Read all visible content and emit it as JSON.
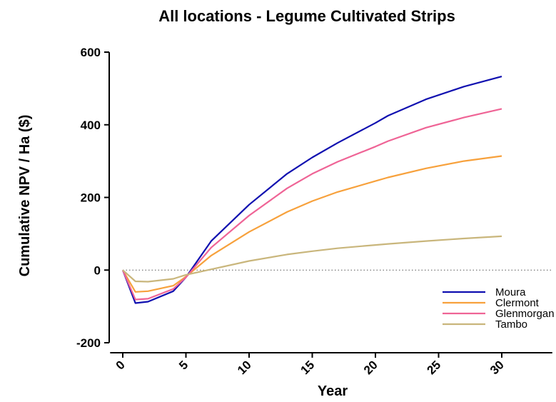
{
  "chart_data": {
    "type": "line",
    "title": "All locations - Legume Cultivated Strips",
    "xlabel": "Year",
    "ylabel": "Cumulative NPV / Ha ($)",
    "xlim": [
      -1,
      34
    ],
    "ylim": [
      -200,
      600
    ],
    "xticks": [
      0,
      5,
      10,
      15,
      20,
      25,
      30
    ],
    "yticks": [
      -200,
      0,
      200,
      400,
      600
    ],
    "reference_line": {
      "y": 0,
      "style": "dotted"
    },
    "legend_position": "bottom-right",
    "x": [
      0,
      1,
      2,
      4,
      5,
      7,
      10,
      13,
      15,
      17,
      20,
      21,
      24,
      27,
      30
    ],
    "series": [
      {
        "name": "Moura",
        "color": "#1010b0",
        "values": [
          0,
          -91,
          -87,
          -58,
          -20,
          80,
          180,
          265,
          310,
          350,
          405,
          425,
          470,
          505,
          533
        ]
      },
      {
        "name": "Clermont",
        "color": "#f7a13c",
        "values": [
          0,
          -60,
          -58,
          -43,
          -18,
          40,
          105,
          160,
          190,
          215,
          245,
          255,
          280,
          300,
          314
        ]
      },
      {
        "name": "Glenmorgan",
        "color": "#ef6496",
        "values": [
          0,
          -81,
          -79,
          -52,
          -20,
          62,
          150,
          225,
          265,
          298,
          340,
          355,
          392,
          420,
          444
        ]
      },
      {
        "name": "Tambo",
        "color": "#c9b67c",
        "values": [
          0,
          -31,
          -32,
          -24,
          -13,
          2,
          25,
          43,
          52,
          60,
          69,
          72,
          80,
          87,
          93
        ]
      }
    ]
  }
}
